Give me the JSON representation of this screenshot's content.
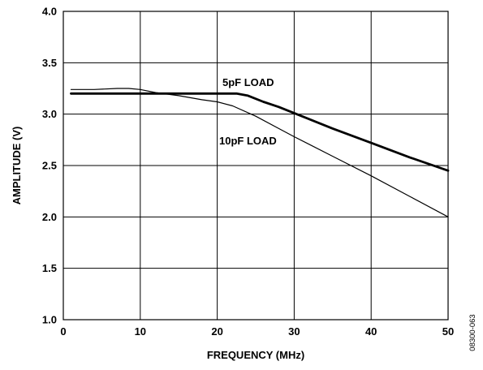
{
  "chart_data": {
    "type": "line",
    "title": "",
    "xlabel": "FREQUENCY (MHz)",
    "ylabel": "AMPLITUDE (V)",
    "xlim": [
      0,
      50
    ],
    "ylim": [
      1.0,
      4.0
    ],
    "x_ticks": [
      "0",
      "10",
      "20",
      "30",
      "40",
      "50"
    ],
    "y_ticks": [
      "1.0",
      "1.5",
      "2.0",
      "2.5",
      "3.0",
      "3.5",
      "4.0"
    ],
    "grid": true,
    "figure_code": "08300-063",
    "series": [
      {
        "name": "5pF LOAD",
        "line_width": "thick",
        "points": [
          [
            1,
            3.2
          ],
          [
            5,
            3.2
          ],
          [
            10,
            3.2
          ],
          [
            15,
            3.2
          ],
          [
            20,
            3.2
          ],
          [
            22.5,
            3.2
          ],
          [
            24,
            3.18
          ],
          [
            26,
            3.12
          ],
          [
            28,
            3.07
          ],
          [
            30,
            3.01
          ],
          [
            35,
            2.86
          ],
          [
            40,
            2.72
          ],
          [
            45,
            2.58
          ],
          [
            50,
            2.45
          ]
        ]
      },
      {
        "name": "10pF LOAD",
        "line_width": "thin",
        "points": [
          [
            1,
            3.24
          ],
          [
            4,
            3.24
          ],
          [
            7,
            3.25
          ],
          [
            8.5,
            3.25
          ],
          [
            10,
            3.24
          ],
          [
            12,
            3.21
          ],
          [
            15,
            3.18
          ],
          [
            18,
            3.14
          ],
          [
            20,
            3.12
          ],
          [
            22,
            3.08
          ],
          [
            25,
            2.98
          ],
          [
            28,
            2.86
          ],
          [
            30,
            2.78
          ],
          [
            35,
            2.59
          ],
          [
            40,
            2.4
          ],
          [
            45,
            2.2
          ],
          [
            50,
            2.0
          ]
        ]
      }
    ]
  }
}
